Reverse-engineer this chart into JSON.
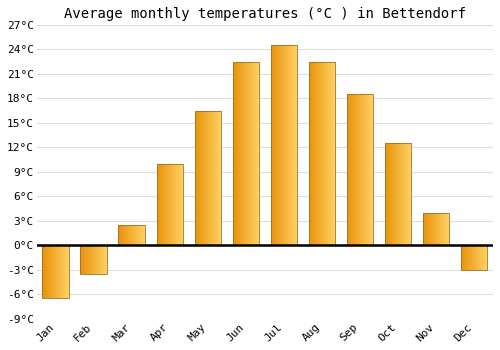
{
  "months": [
    "Jan",
    "Feb",
    "Mar",
    "Apr",
    "May",
    "Jun",
    "Jul",
    "Aug",
    "Sep",
    "Oct",
    "Nov",
    "Dec"
  ],
  "values": [
    -6.5,
    -3.5,
    2.5,
    10.0,
    16.5,
    22.5,
    24.5,
    22.5,
    18.5,
    12.5,
    4.0,
    -3.0
  ],
  "bar_color_left": "#E8920A",
  "bar_color_right": "#FFD060",
  "bar_edge_color": "#A07020",
  "title": "Average monthly temperatures (°C ) in Bettendorf",
  "ylim": [
    -9,
    27
  ],
  "yticks": [
    -9,
    -6,
    -3,
    0,
    3,
    6,
    9,
    12,
    15,
    18,
    21,
    24,
    27
  ],
  "ytick_labels": [
    "-9°C",
    "-6°C",
    "-3°C",
    "0°C",
    "3°C",
    "6°C",
    "9°C",
    "12°C",
    "15°C",
    "18°C",
    "21°C",
    "24°C",
    "27°C"
  ],
  "background_color": "#ffffff",
  "grid_color": "#dddddd",
  "title_fontsize": 10,
  "tick_fontsize": 8,
  "font_family": "monospace",
  "bar_width": 0.7
}
